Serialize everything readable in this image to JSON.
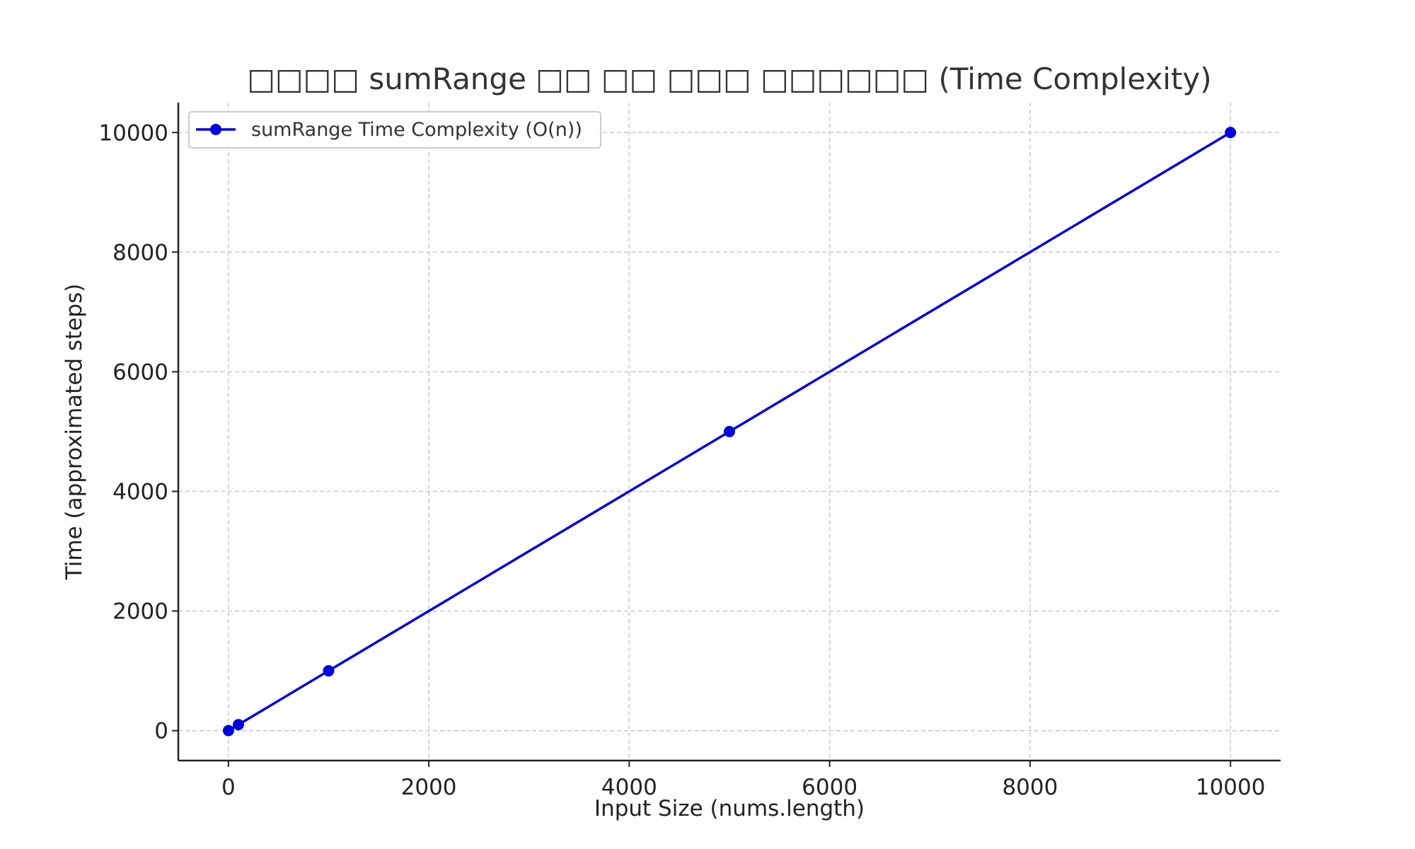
{
  "chart_data": {
    "type": "line",
    "title": "□□□□ sumRange □□ □□ □□□ □□□□□□ (Time Complexity)",
    "xlabel": "Input Size (nums.length)",
    "ylabel": "Time (approximated steps)",
    "xlim": [
      -500,
      10500
    ],
    "ylim": [
      -500,
      10500
    ],
    "xticks": [
      0,
      2000,
      4000,
      6000,
      8000,
      10000
    ],
    "yticks": [
      0,
      2000,
      4000,
      6000,
      8000,
      10000
    ],
    "grid": true,
    "legend_position": "top-left",
    "series": [
      {
        "name": "sumRange Time Complexity (O(n))",
        "color": "#0000dd",
        "x": [
          1,
          100,
          1000,
          5000,
          10000
        ],
        "y": [
          1,
          100,
          1000,
          5000,
          10000
        ]
      }
    ]
  }
}
